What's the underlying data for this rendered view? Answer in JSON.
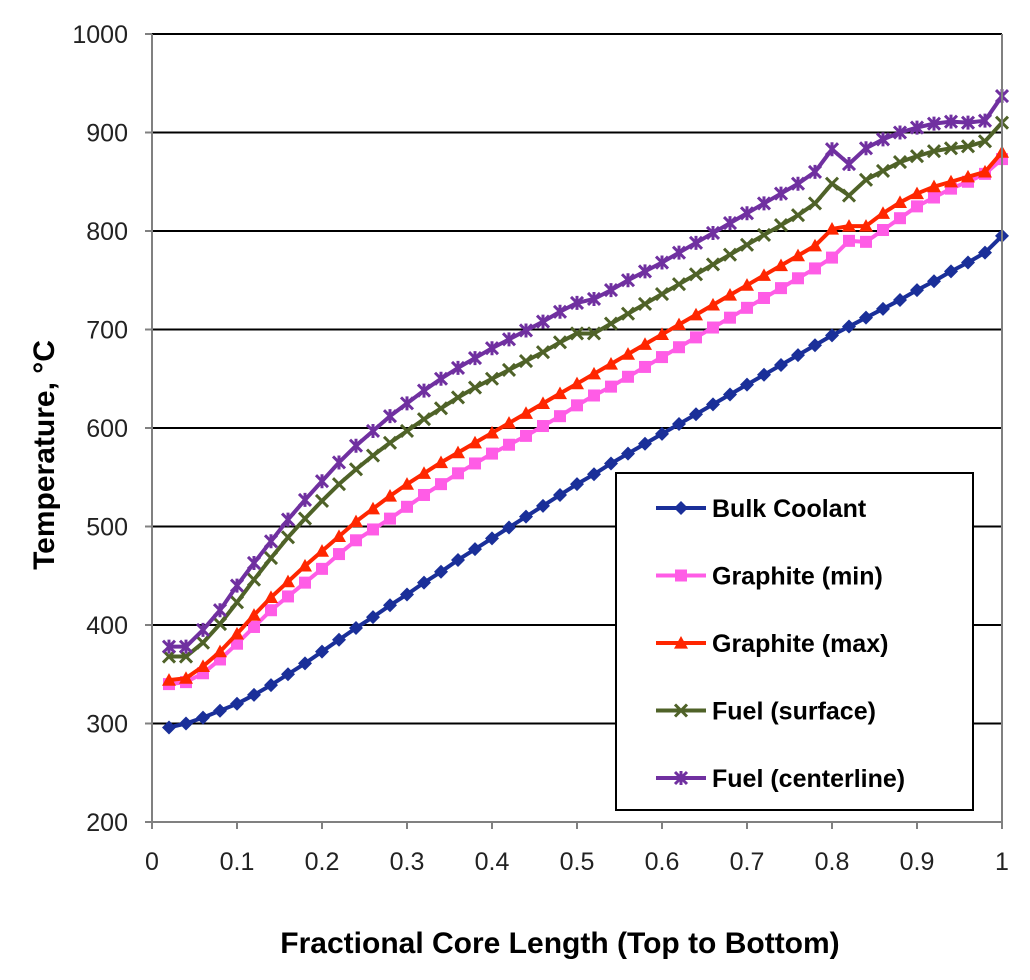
{
  "chart_data": {
    "type": "line",
    "title": "",
    "xlabel": "Fractional Core Length (Top to Bottom)",
    "ylabel": "Temperature, °C",
    "xlim": [
      0,
      1
    ],
    "ylim": [
      200,
      1000
    ],
    "x_ticks": [
      "0",
      "0.1",
      "0.2",
      "0.3",
      "0.4",
      "0.5",
      "0.6",
      "0.7",
      "0.8",
      "0.9",
      "1"
    ],
    "y_ticks": [
      "200",
      "300",
      "400",
      "500",
      "600",
      "700",
      "800",
      "900",
      "1000"
    ],
    "grid": "horizontal",
    "legend_position": "right",
    "x": [
      0.02,
      0.04,
      0.06,
      0.08,
      0.1,
      0.12,
      0.14,
      0.16,
      0.18,
      0.2,
      0.22,
      0.24,
      0.26,
      0.28,
      0.3,
      0.32,
      0.34,
      0.36,
      0.38,
      0.4,
      0.42,
      0.44,
      0.46,
      0.48,
      0.5,
      0.52,
      0.54,
      0.56,
      0.58,
      0.6,
      0.62,
      0.64,
      0.66,
      0.68,
      0.7,
      0.72,
      0.74,
      0.76,
      0.78,
      0.8,
      0.82,
      0.84,
      0.86,
      0.88,
      0.9,
      0.92,
      0.94,
      0.96,
      0.98,
      1.0
    ],
    "series": [
      {
        "name": "Bulk Coolant",
        "color": "#1a2f99",
        "marker": "diamond",
        "values": [
          296,
          300,
          306,
          313,
          320,
          329,
          339,
          350,
          361,
          373,
          385,
          397,
          408,
          420,
          431,
          443,
          454,
          466,
          477,
          488,
          499,
          510,
          521,
          532,
          543,
          553,
          564,
          574,
          584,
          594,
          604,
          614,
          624,
          634,
          644,
          654,
          664,
          674,
          684,
          694,
          703,
          712,
          721,
          730,
          740,
          749,
          759,
          768,
          778,
          795
        ]
      },
      {
        "name": "Graphite (min)",
        "color": "#ff5ce6",
        "marker": "square",
        "values": [
          340,
          342,
          351,
          365,
          381,
          398,
          415,
          429,
          443,
          457,
          472,
          486,
          497,
          508,
          520,
          532,
          543,
          554,
          564,
          574,
          583,
          592,
          602,
          612,
          623,
          633,
          642,
          652,
          662,
          672,
          682,
          692,
          702,
          712,
          722,
          732,
          742,
          752,
          762,
          773,
          790,
          789,
          801,
          813,
          825,
          834,
          843,
          850,
          858,
          873
        ]
      },
      {
        "name": "Graphite (max)",
        "color": "#ff2600",
        "marker": "triangle",
        "values": [
          344,
          346,
          358,
          373,
          391,
          410,
          428,
          444,
          460,
          475,
          490,
          505,
          518,
          531,
          543,
          554,
          565,
          575,
          585,
          595,
          605,
          615,
          625,
          635,
          645,
          655,
          665,
          675,
          685,
          695,
          705,
          715,
          725,
          735,
          745,
          755,
          765,
          775,
          785,
          802,
          805,
          805,
          818,
          829,
          838,
          845,
          850,
          855,
          860,
          880
        ]
      },
      {
        "name": "Fuel (surface)",
        "color": "#4f6228",
        "marker": "x",
        "values": [
          368,
          368,
          382,
          401,
          423,
          446,
          468,
          489,
          508,
          526,
          543,
          558,
          572,
          585,
          597,
          609,
          620,
          631,
          641,
          650,
          659,
          668,
          677,
          687,
          696,
          696,
          706,
          716,
          726,
          736,
          746,
          756,
          766,
          776,
          786,
          796,
          806,
          816,
          828,
          848,
          836,
          852,
          861,
          870,
          876,
          881,
          884,
          886,
          891,
          910
        ]
      },
      {
        "name": "Fuel (centerline)",
        "color": "#7030a0",
        "marker": "star",
        "values": [
          378,
          378,
          395,
          415,
          440,
          463,
          485,
          507,
          527,
          546,
          565,
          582,
          597,
          612,
          625,
          638,
          650,
          661,
          671,
          681,
          690,
          699,
          708,
          718,
          727,
          731,
          740,
          750,
          759,
          768,
          778,
          788,
          798,
          808,
          818,
          828,
          838,
          848,
          860,
          883,
          868,
          884,
          893,
          900,
          905,
          909,
          911,
          910,
          912,
          937
        ]
      }
    ]
  }
}
